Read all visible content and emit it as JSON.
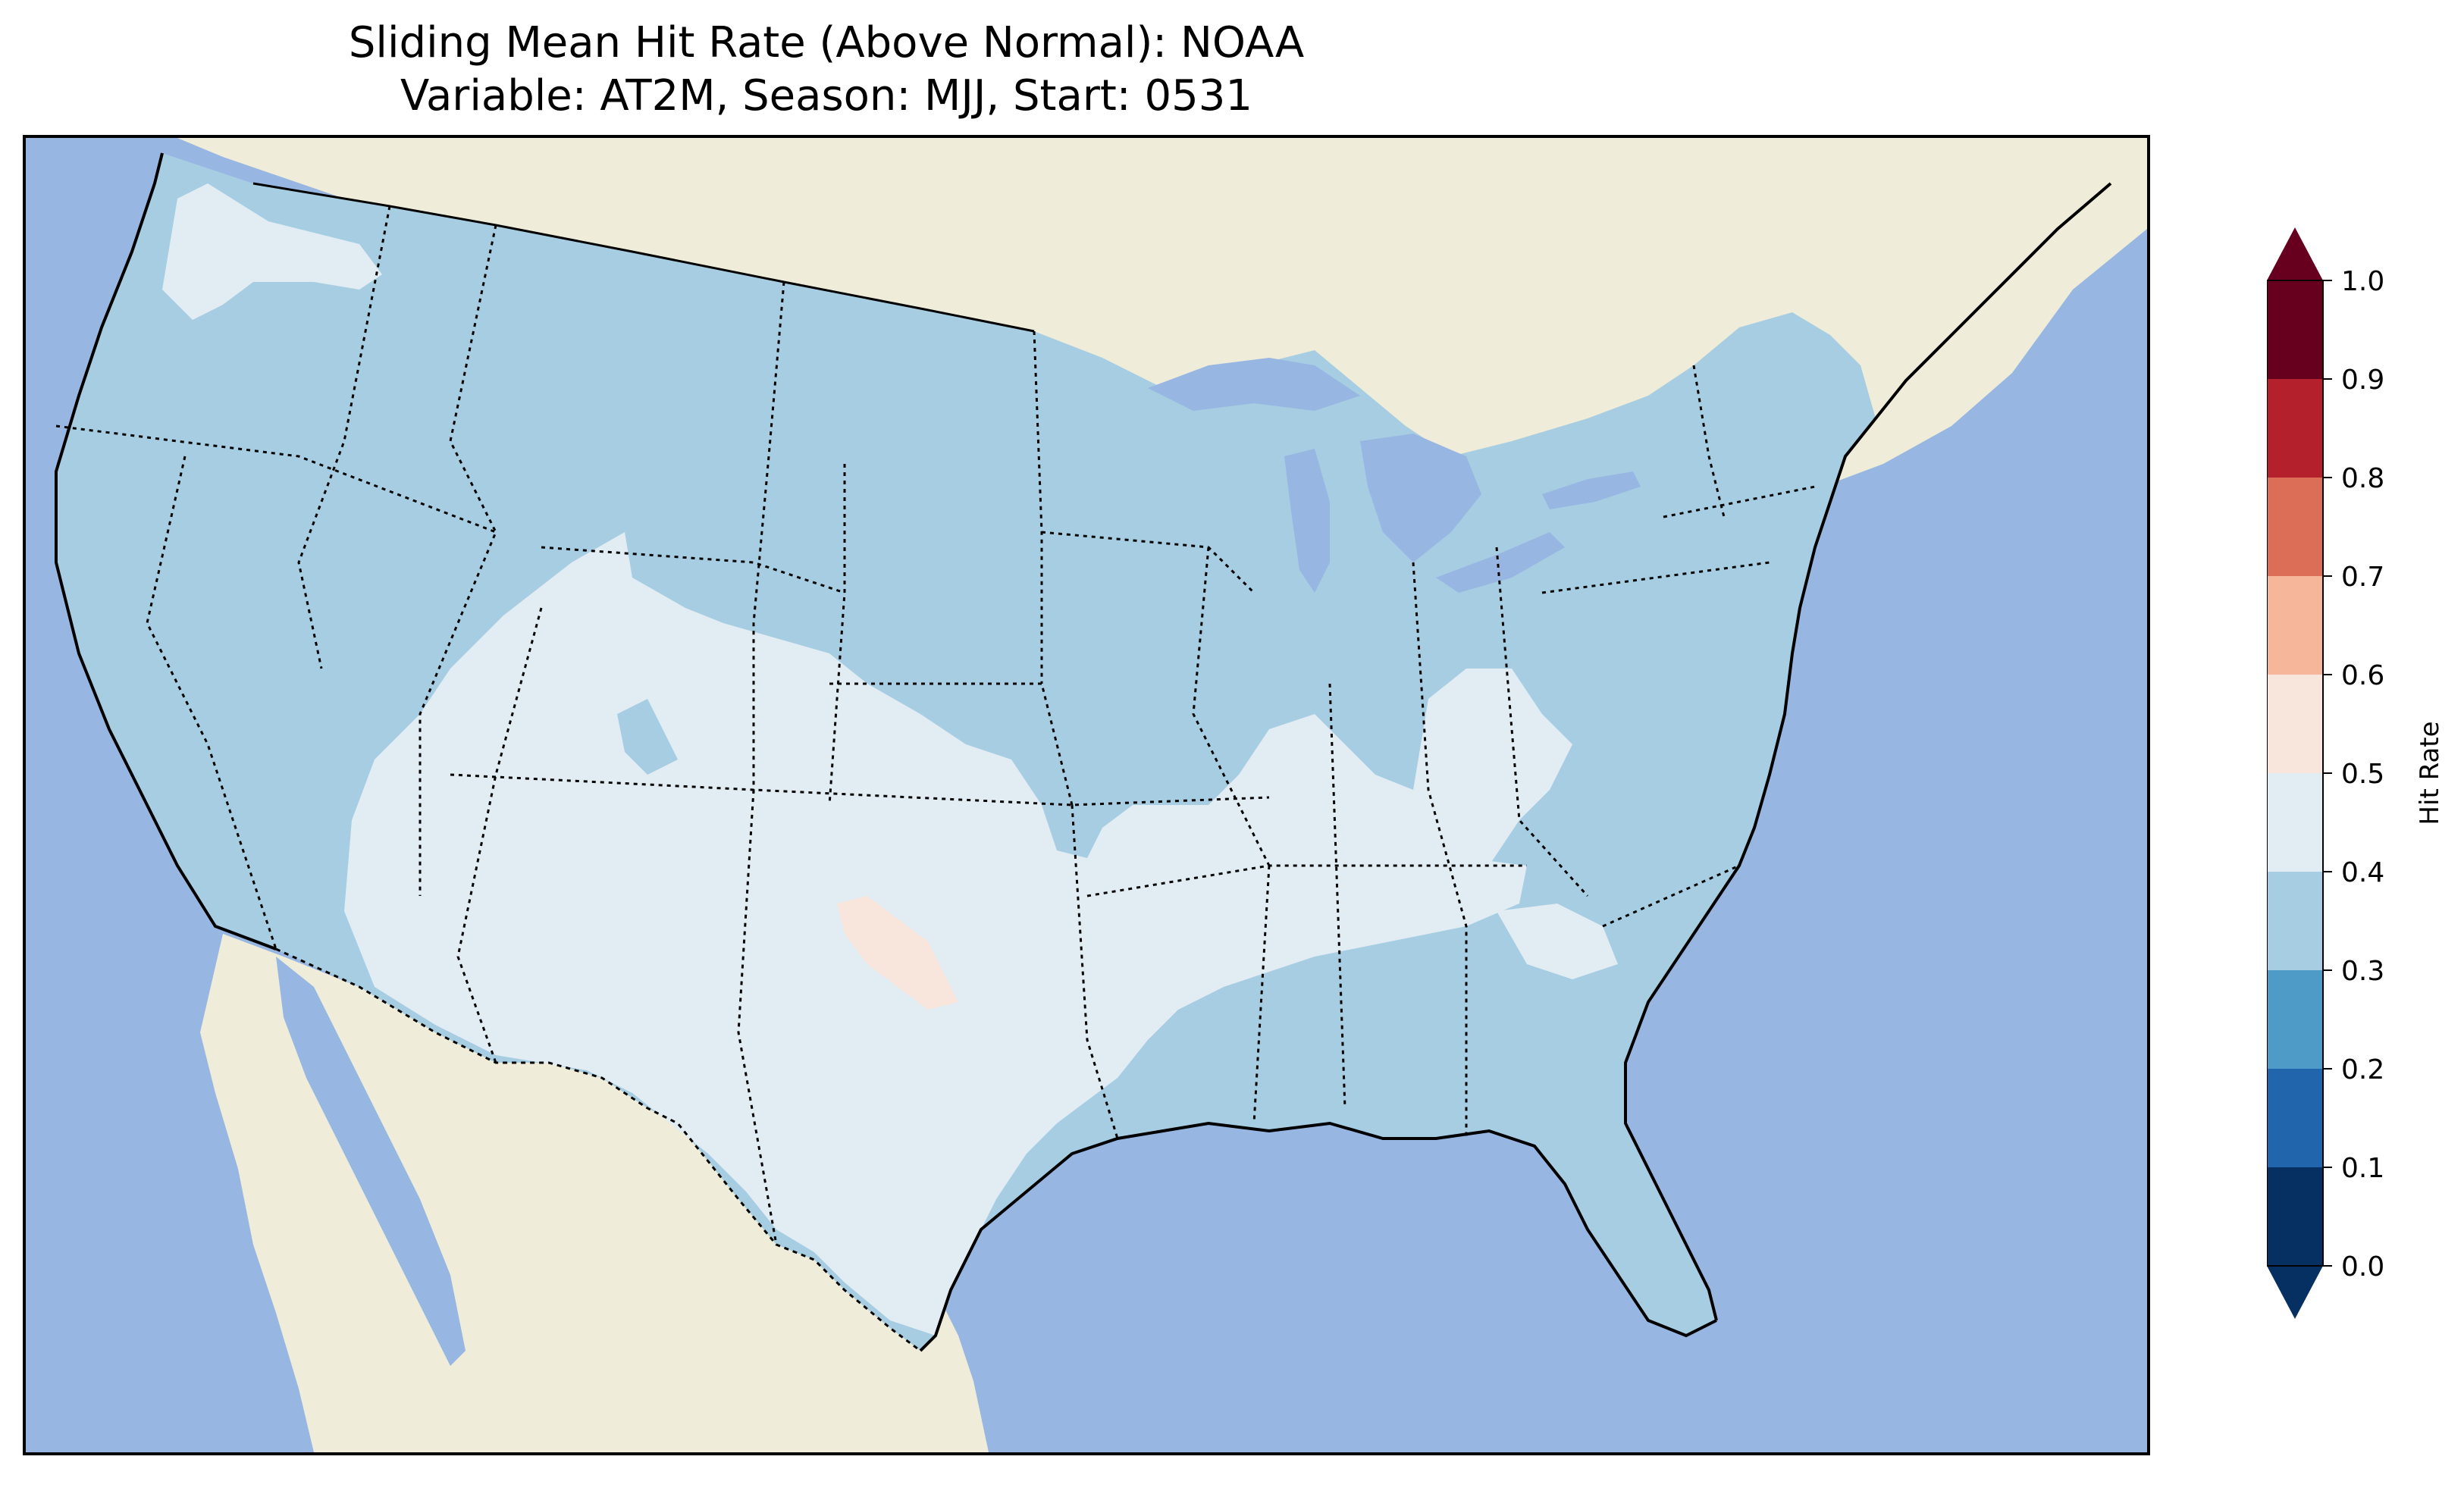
{
  "title": {
    "line1": "Sliding Mean Hit Rate (Above Normal): NOAA",
    "line2": "Variable: AT2M, Season: MJJ, Start: 0531"
  },
  "colors": {
    "ocean": "#97b6e1",
    "land": "#efedd9",
    "lakes": "#97b6e1"
  },
  "map_data": {
    "type": "filled-contour-map",
    "region": "Contiguous United States",
    "variable": "AT2M",
    "season": "MJJ",
    "start": "0531",
    "regions": [
      {
        "name": "west-coast-northern-rockies-plains",
        "level": "0.3-0.4"
      },
      {
        "name": "pacific-northwest-coast-strip",
        "level": "0.4-0.5"
      },
      {
        "name": "southwest-colorado-new-mexico-texas",
        "level": "0.4-0.5"
      },
      {
        "name": "ohio-valley-tennessee",
        "level": "0.4-0.5"
      },
      {
        "name": "west-texas-patch",
        "level": "0.5-0.6"
      },
      {
        "name": "southeast-gulf-east-coast",
        "level": "0.3-0.4"
      }
    ]
  },
  "colorbar": {
    "label": "Hit Rate",
    "ticks": [
      "0.0",
      "0.1",
      "0.2",
      "0.3",
      "0.4",
      "0.5",
      "0.6",
      "0.7",
      "0.8",
      "0.9",
      "1.0"
    ],
    "bins": [
      {
        "range": [
          0.0,
          0.1
        ],
        "color": "#053061"
      },
      {
        "range": [
          0.1,
          0.2
        ],
        "color": "#2166ac"
      },
      {
        "range": [
          0.2,
          0.3
        ],
        "color": "#4f9bc7"
      },
      {
        "range": [
          0.3,
          0.4
        ],
        "color": "#a6cde2"
      },
      {
        "range": [
          0.4,
          0.5
        ],
        "color": "#e1ecf3"
      },
      {
        "range": [
          0.5,
          0.6
        ],
        "color": "#f8e6dc"
      },
      {
        "range": [
          0.6,
          0.7
        ],
        "color": "#f5b699"
      },
      {
        "range": [
          0.7,
          0.8
        ],
        "color": "#dc6e57"
      },
      {
        "range": [
          0.8,
          0.9
        ],
        "color": "#b4212c"
      },
      {
        "range": [
          0.9,
          1.0
        ],
        "color": "#67001f"
      }
    ],
    "extend_min_color": "#053061",
    "extend_max_color": "#67001f"
  }
}
